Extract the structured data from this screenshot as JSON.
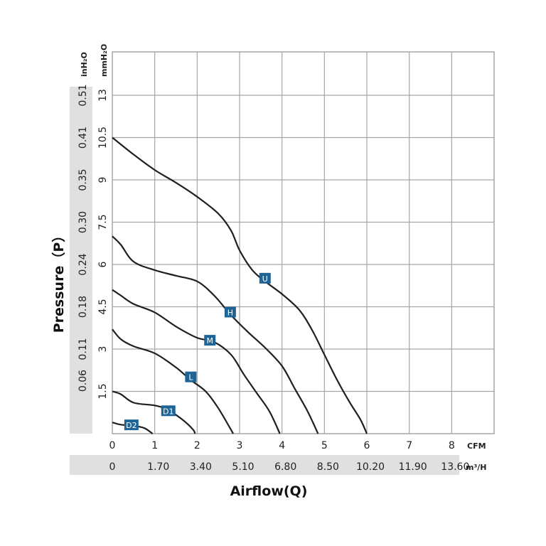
{
  "chart_data": {
    "type": "line",
    "title": "",
    "xlabel": "Airflow(Q)",
    "ylabel": "Pressure（P）",
    "x_unit_primary": "CFM",
    "x_unit_secondary": "m³/H",
    "y_unit_primary": "mmH₂O",
    "y_unit_secondary": "inH₂O",
    "xlim": [
      0,
      9
    ],
    "ylim": [
      0,
      13.5
    ],
    "grid": true,
    "x_ticks": [
      "0",
      "1",
      "2",
      "3",
      "4",
      "5",
      "6",
      "7",
      "8"
    ],
    "x_ticks_secondary": [
      "0",
      "1.70",
      "3.40",
      "5.10",
      "6.80",
      "8.50",
      "10.20",
      "11.90",
      "13.60"
    ],
    "y_ticks": [
      "1.5",
      "3",
      "4.5",
      "6",
      "7.5",
      "9",
      "10.5",
      "13"
    ],
    "y_ticks_secondary": [
      "0.06",
      "0.11",
      "0.18",
      "0.24",
      "0.30",
      "0.35",
      "0.41",
      "0.51"
    ],
    "series": [
      {
        "name": "U",
        "label_at": [
          3.6,
          5.5
        ],
        "points": [
          [
            0,
            10.5
          ],
          [
            0.5,
            9.9
          ],
          [
            1.0,
            9.35
          ],
          [
            1.5,
            8.9
          ],
          [
            2.0,
            8.4
          ],
          [
            2.5,
            7.8
          ],
          [
            2.8,
            7.2
          ],
          [
            3.0,
            6.5
          ],
          [
            3.3,
            5.8
          ],
          [
            3.6,
            5.4
          ],
          [
            4.0,
            4.95
          ],
          [
            4.4,
            4.4
          ],
          [
            4.7,
            3.7
          ],
          [
            5.0,
            2.8
          ],
          [
            5.3,
            1.9
          ],
          [
            5.6,
            1.1
          ],
          [
            5.85,
            0.5
          ],
          [
            6.0,
            0
          ]
        ]
      },
      {
        "name": "H",
        "label_at": [
          2.78,
          4.3
        ],
        "points": [
          [
            0,
            7.0
          ],
          [
            0.2,
            6.7
          ],
          [
            0.5,
            6.1
          ],
          [
            1.0,
            5.8
          ],
          [
            1.5,
            5.6
          ],
          [
            2.0,
            5.4
          ],
          [
            2.4,
            4.9
          ],
          [
            2.8,
            4.2
          ],
          [
            3.2,
            3.6
          ],
          [
            3.6,
            3.05
          ],
          [
            4.0,
            2.4
          ],
          [
            4.3,
            1.6
          ],
          [
            4.6,
            0.8
          ],
          [
            4.85,
            0
          ]
        ]
      },
      {
        "name": "M",
        "label_at": [
          2.3,
          3.3
        ],
        "points": [
          [
            0,
            5.1
          ],
          [
            0.2,
            4.9
          ],
          [
            0.5,
            4.6
          ],
          [
            1.0,
            4.3
          ],
          [
            1.5,
            3.8
          ],
          [
            2.0,
            3.4
          ],
          [
            2.4,
            3.25
          ],
          [
            2.8,
            2.8
          ],
          [
            3.1,
            2.1
          ],
          [
            3.4,
            1.45
          ],
          [
            3.7,
            0.8
          ],
          [
            3.95,
            0
          ]
        ]
      },
      {
        "name": "L",
        "label_at": [
          1.85,
          2.0
        ],
        "points": [
          [
            0,
            3.7
          ],
          [
            0.2,
            3.35
          ],
          [
            0.5,
            3.1
          ],
          [
            1.0,
            2.85
          ],
          [
            1.5,
            2.35
          ],
          [
            1.85,
            1.9
          ],
          [
            2.2,
            1.5
          ],
          [
            2.5,
            0.9
          ],
          [
            2.85,
            0
          ]
        ]
      },
      {
        "name": "D1",
        "label_at": [
          1.32,
          0.8
        ],
        "points": [
          [
            0,
            1.5
          ],
          [
            0.2,
            1.4
          ],
          [
            0.5,
            1.1
          ],
          [
            1.0,
            1.0
          ],
          [
            1.3,
            0.85
          ],
          [
            1.65,
            0.5
          ],
          [
            1.9,
            0.15
          ],
          [
            1.95,
            0
          ]
        ]
      },
      {
        "name": "D2",
        "label_at": [
          0.45,
          0.3
        ],
        "points": [
          [
            0,
            0.4
          ],
          [
            0.2,
            0.32
          ],
          [
            0.5,
            0.28
          ],
          [
            0.75,
            0.2
          ],
          [
            0.95,
            0
          ]
        ]
      }
    ]
  },
  "colors": {
    "curve": "#1f1f1f",
    "grid": "#a6a6a6",
    "axis_band": "#e0e0e0",
    "label_box": "#1f6496",
    "label_text": "#ffffff"
  }
}
